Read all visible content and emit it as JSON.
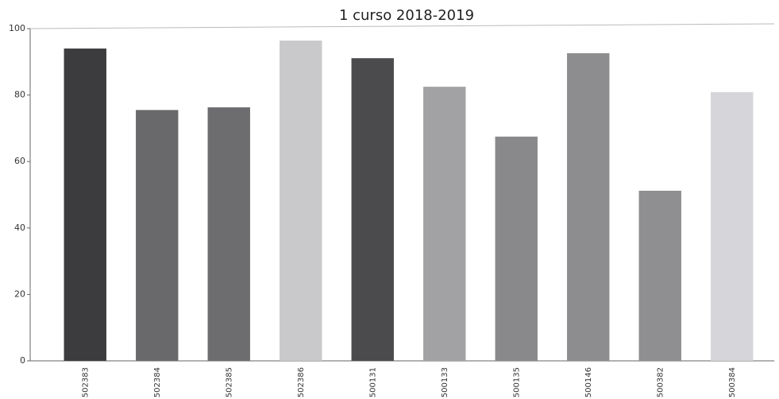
{
  "chart_data": {
    "type": "bar",
    "title": "1 curso 2018-2019",
    "categories": [
      "502383",
      "502384",
      "502385",
      "502386",
      "500131",
      "500133",
      "500135",
      "500146",
      "500382",
      "500384"
    ],
    "values": [
      94,
      75.5,
      76.3,
      96.4,
      91.1,
      82.5,
      67.5,
      92.6,
      51.2,
      80.9
    ],
    "colors": [
      "#3c3c3e",
      "#69696b",
      "#6d6d6f",
      "#c9c9cb",
      "#4b4b4d",
      "#a2a2a4",
      "#89898b",
      "#8d8d8f",
      "#8f8f91",
      "#d6d6da"
    ],
    "ylim": [
      0,
      100
    ],
    "yticks": [
      0,
      20,
      40,
      60,
      80,
      100
    ],
    "grid": false
  }
}
